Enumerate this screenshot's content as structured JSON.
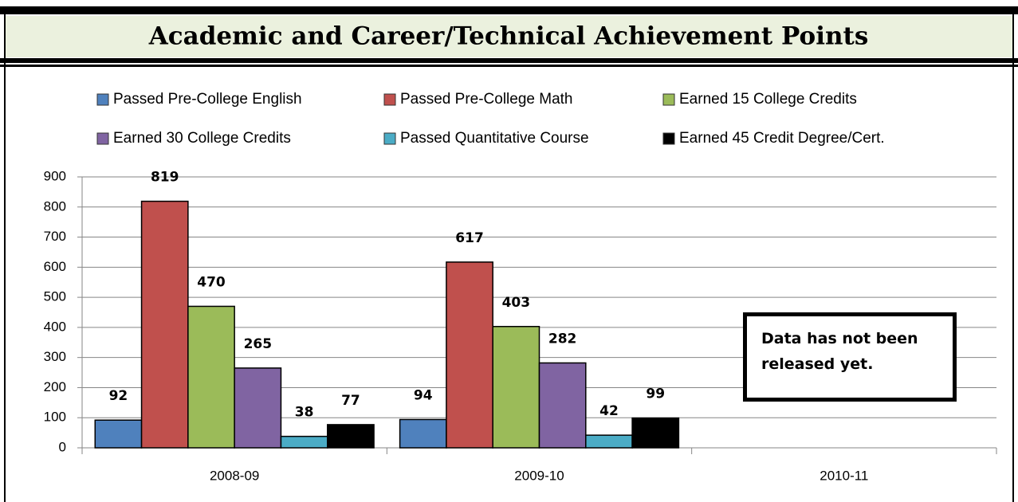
{
  "chart_data": {
    "type": "bar",
    "title": "Academic and Career/Technical Achievement Points",
    "categories": [
      "2008-09",
      "2009-10",
      "2010-11"
    ],
    "series": [
      {
        "name": "Passed Pre-College English",
        "color": "#4f81bd",
        "values": [
          92,
          94,
          null
        ]
      },
      {
        "name": "Passed Pre-College Math",
        "color": "#c0504d",
        "values": [
          819,
          617,
          null
        ]
      },
      {
        "name": "Earned 15 College Credits",
        "color": "#9bbb59",
        "values": [
          470,
          403,
          null
        ]
      },
      {
        "name": "Earned 30 College Credits",
        "color": "#8064a2",
        "values": [
          265,
          282,
          null
        ]
      },
      {
        "name": "Passed Quantitative Course",
        "color": "#4bacc6",
        "values": [
          38,
          42,
          null
        ]
      },
      {
        "name": "Earned 45 Credit Degree/Cert.",
        "color": "#000000",
        "values": [
          77,
          99,
          null
        ]
      }
    ],
    "ylim": [
      0,
      900
    ],
    "yticks": [
      0,
      100,
      200,
      300,
      400,
      500,
      600,
      700,
      800,
      900
    ],
    "grid": true,
    "annotation": "Data has not been released yet."
  }
}
